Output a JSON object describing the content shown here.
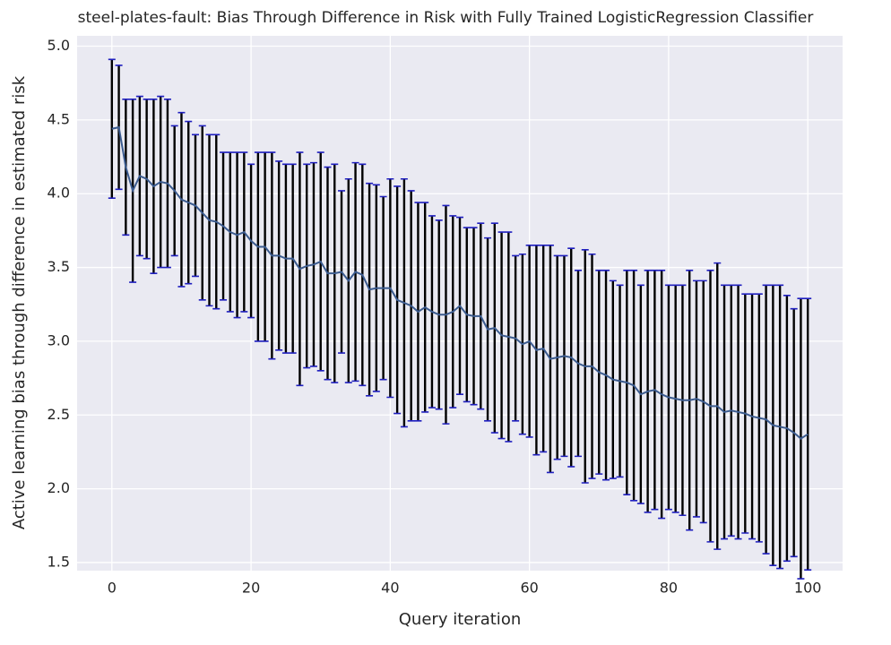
{
  "chart_data": {
    "type": "errorbar",
    "title": "steel-plates-fault: Bias Through Difference in Risk with Fully Trained LogisticRegression Classifier",
    "x_label": "Query iteration",
    "y_label": "Active learning bias through difference in estimated risk",
    "x": [
      0,
      1,
      2,
      3,
      4,
      5,
      6,
      7,
      8,
      9,
      10,
      11,
      12,
      13,
      14,
      15,
      16,
      17,
      18,
      19,
      20,
      21,
      22,
      23,
      24,
      25,
      26,
      27,
      28,
      29,
      30,
      31,
      32,
      33,
      34,
      35,
      36,
      37,
      38,
      39,
      40,
      41,
      42,
      43,
      44,
      45,
      46,
      47,
      48,
      49,
      50,
      51,
      52,
      53,
      54,
      55,
      56,
      57,
      58,
      59,
      60,
      61,
      62,
      63,
      64,
      65,
      66,
      67,
      68,
      69,
      70,
      71,
      72,
      73,
      74,
      75,
      76,
      77,
      78,
      79,
      80,
      81,
      82,
      83,
      84,
      85,
      86,
      87,
      88,
      89,
      90,
      91,
      92,
      93,
      94,
      95,
      96,
      97,
      98,
      99,
      100
    ],
    "values": [
      4.44,
      4.45,
      4.18,
      4.02,
      4.12,
      4.1,
      4.05,
      4.08,
      4.07,
      4.02,
      3.96,
      3.94,
      3.92,
      3.87,
      3.82,
      3.81,
      3.78,
      3.74,
      3.72,
      3.74,
      3.68,
      3.64,
      3.64,
      3.58,
      3.58,
      3.56,
      3.56,
      3.49,
      3.51,
      3.52,
      3.54,
      3.46,
      3.46,
      3.47,
      3.41,
      3.47,
      3.45,
      3.35,
      3.36,
      3.36,
      3.36,
      3.28,
      3.26,
      3.24,
      3.2,
      3.23,
      3.2,
      3.18,
      3.18,
      3.2,
      3.24,
      3.18,
      3.17,
      3.17,
      3.08,
      3.09,
      3.04,
      3.03,
      3.02,
      2.98,
      3.0,
      2.94,
      2.95,
      2.88,
      2.89,
      2.9,
      2.89,
      2.85,
      2.83,
      2.83,
      2.79,
      2.77,
      2.74,
      2.73,
      2.72,
      2.7,
      2.64,
      2.66,
      2.67,
      2.64,
      2.62,
      2.61,
      2.6,
      2.6,
      2.61,
      2.59,
      2.56,
      2.56,
      2.52,
      2.53,
      2.52,
      2.51,
      2.49,
      2.48,
      2.47,
      2.43,
      2.42,
      2.41,
      2.38,
      2.34,
      2.37
    ],
    "errors": [
      0.47,
      0.42,
      0.46,
      0.62,
      0.54,
      0.54,
      0.59,
      0.58,
      0.57,
      0.44,
      0.59,
      0.55,
      0.48,
      0.59,
      0.58,
      0.59,
      0.5,
      0.54,
      0.56,
      0.54,
      0.52,
      0.64,
      0.64,
      0.7,
      0.64,
      0.64,
      0.64,
      0.79,
      0.69,
      0.69,
      0.74,
      0.72,
      0.74,
      0.55,
      0.69,
      0.74,
      0.75,
      0.72,
      0.7,
      0.62,
      0.74,
      0.77,
      0.84,
      0.78,
      0.74,
      0.71,
      0.65,
      0.64,
      0.74,
      0.65,
      0.6,
      0.59,
      0.6,
      0.63,
      0.62,
      0.71,
      0.7,
      0.71,
      0.56,
      0.61,
      0.65,
      0.71,
      0.7,
      0.77,
      0.69,
      0.68,
      0.74,
      0.63,
      0.79,
      0.76,
      0.69,
      0.71,
      0.67,
      0.65,
      0.76,
      0.78,
      0.74,
      0.82,
      0.81,
      0.84,
      0.76,
      0.77,
      0.78,
      0.88,
      0.8,
      0.82,
      0.92,
      0.97,
      0.86,
      0.85,
      0.86,
      0.81,
      0.83,
      0.84,
      0.91,
      0.95,
      0.96,
      0.9,
      0.84,
      0.95,
      0.92
    ],
    "line_color": "#3b5b8f",
    "bar_color": "#000000",
    "cap_color": "#1f1fbf",
    "xlim": [
      -5,
      105
    ],
    "xticks": [
      0,
      20,
      40,
      60,
      80,
      100
    ],
    "ylim": [
      1.445,
      5.07
    ],
    "yticks": [
      1.5,
      {
        "value": 2.0,
        "label": "2.0"
      },
      2.5,
      {
        "value": 3.0,
        "label": "3.0"
      },
      3.5,
      {
        "value": 4.0,
        "label": "4.0"
      },
      4.5,
      {
        "value": 5.0,
        "label": "5.0"
      }
    ],
    "grid": true
  }
}
